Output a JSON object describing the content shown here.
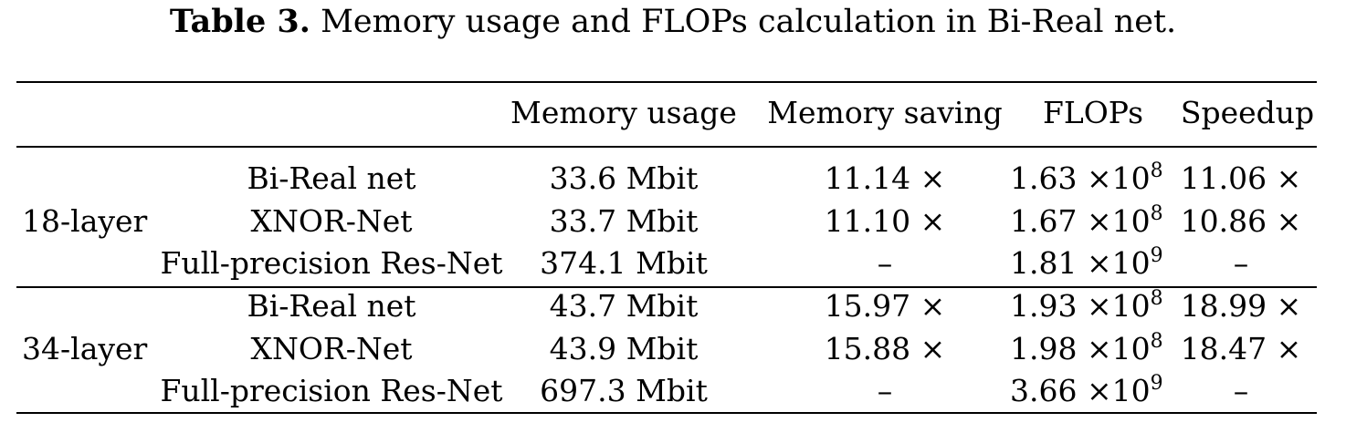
{
  "caption": {
    "label": "Table 3.",
    "text": " Memory usage and FLOPs calculation in Bi-Real net."
  },
  "table": {
    "headers": {
      "memory_usage": "Memory usage",
      "memory_saving": "Memory saving",
      "flops": "FLOPs",
      "speedup": "Speedup"
    },
    "groups": [
      {
        "label": "18-layer",
        "rows": [
          {
            "method": "Bi-Real net",
            "memory_usage": "33.6 Mbit",
            "memory_saving": "11.14 ×",
            "flops_mantissa": "1.63 ×10",
            "flops_exponent": "8",
            "speedup": "11.06 ×"
          },
          {
            "method": "XNOR-Net",
            "memory_usage": "33.7 Mbit",
            "memory_saving": "11.10 ×",
            "flops_mantissa": "1.67 ×10",
            "flops_exponent": "8",
            "speedup": "10.86 ×"
          },
          {
            "method": "Full-precision Res-Net",
            "memory_usage": "374.1 Mbit",
            "memory_saving": "–",
            "flops_mantissa": "1.81 ×10",
            "flops_exponent": "9",
            "speedup": "–"
          }
        ]
      },
      {
        "label": "34-layer",
        "rows": [
          {
            "method": "Bi-Real net",
            "memory_usage": "43.7 Mbit",
            "memory_saving": "15.97 ×",
            "flops_mantissa": "1.93 ×10",
            "flops_exponent": "8",
            "speedup": "18.99 ×"
          },
          {
            "method": "XNOR-Net",
            "memory_usage": "43.9 Mbit",
            "memory_saving": "15.88 ×",
            "flops_mantissa": "1.98 ×10",
            "flops_exponent": "8",
            "speedup": "18.47 ×"
          },
          {
            "method": "Full-precision Res-Net",
            "memory_usage": "697.3 Mbit",
            "memory_saving": "–",
            "flops_mantissa": "3.66 ×10",
            "flops_exponent": "9",
            "speedup": "–"
          }
        ]
      }
    ]
  }
}
